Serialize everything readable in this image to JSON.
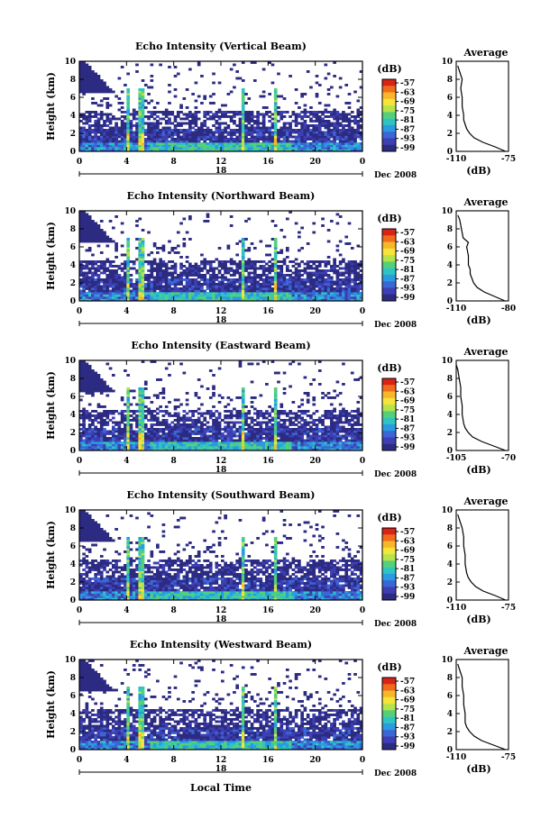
{
  "figure": {
    "xlabel": "Local Time"
  },
  "colorbar": {
    "title": "(dB)",
    "ticks": [
      "-57",
      "-63",
      "-69",
      "-75",
      "-81",
      "-87",
      "-93",
      "-99"
    ],
    "colors": [
      "#d62417",
      "#f26a1c",
      "#f7b72a",
      "#f5e43a",
      "#b6e34a",
      "#55d07a",
      "#2fc4c2",
      "#2a9be0",
      "#3b66d6",
      "#3d3fb3",
      "#2c2b82"
    ]
  },
  "chart_data": [
    {
      "type": "heatmap",
      "title": "Echo Intensity (Vertical Beam)",
      "ylabel": "Height (km)",
      "y_ticks": [
        "0",
        "2",
        "4",
        "6",
        "8",
        "10"
      ],
      "x_ticks": [
        "0",
        "4",
        "8",
        "12",
        "16",
        "20",
        "0"
      ],
      "xlim": [
        0,
        24
      ],
      "ylim": [
        0,
        10
      ],
      "date_tick": "18",
      "date_label": "Dec 2008",
      "profile": {
        "title": "Average",
        "xlabel": "(dB)",
        "x_ticks": [
          "-110",
          "-75"
        ],
        "xlim": [
          -110,
          -75
        ],
        "y_ticks": [
          "0",
          "2",
          "4",
          "6",
          "8",
          "10"
        ],
        "heights": [
          0,
          0.5,
          1,
          1.5,
          2,
          2.5,
          3,
          3.5,
          4,
          5,
          6,
          7,
          8,
          9,
          9.5
        ],
        "values": [
          -77,
          -84,
          -92,
          -98,
          -101,
          -103,
          -104,
          -105,
          -105,
          -106,
          -106,
          -107,
          -106,
          -108,
          -109
        ]
      }
    },
    {
      "type": "heatmap",
      "title": "Echo Intensity (Northward Beam)",
      "ylabel": "Height (km)",
      "y_ticks": [
        "0",
        "2",
        "4",
        "6",
        "8",
        "10"
      ],
      "x_ticks": [
        "0",
        "4",
        "8",
        "12",
        "16",
        "20",
        "0"
      ],
      "xlim": [
        0,
        24
      ],
      "ylim": [
        0,
        10
      ],
      "date_tick": "18",
      "date_label": "Dec 2008",
      "profile": {
        "title": "Average",
        "xlabel": "(dB)",
        "x_ticks": [
          "-110",
          "-80"
        ],
        "xlim": [
          -110,
          -80
        ],
        "y_ticks": [
          "0",
          "2",
          "4",
          "6",
          "8",
          "10"
        ],
        "heights": [
          0,
          0.5,
          1,
          1.5,
          2,
          2.5,
          3,
          3.5,
          4,
          5,
          6,
          6.5,
          7,
          8,
          9,
          9.5
        ],
        "values": [
          -82,
          -88,
          -94,
          -98,
          -100,
          -101,
          -102,
          -102,
          -103,
          -103,
          -104,
          -103,
          -106,
          -107,
          -108,
          -109
        ]
      }
    },
    {
      "type": "heatmap",
      "title": "Echo Intensity (Eastward Beam)",
      "ylabel": "Height (km)",
      "y_ticks": [
        "0",
        "2",
        "4",
        "6",
        "8",
        "10"
      ],
      "x_ticks": [
        "0",
        "4",
        "8",
        "12",
        "16",
        "20",
        "0"
      ],
      "xlim": [
        0,
        24
      ],
      "ylim": [
        0,
        10
      ],
      "date_tick": "18",
      "date_label": "Dec 2008",
      "profile": {
        "title": "Average",
        "xlabel": "(dB)",
        "x_ticks": [
          "-105",
          "-70"
        ],
        "xlim": [
          -105,
          -70
        ],
        "y_ticks": [
          "0",
          "2",
          "4",
          "6",
          "8",
          "10"
        ],
        "heights": [
          0,
          0.5,
          1,
          1.5,
          2,
          2.5,
          3,
          4,
          5,
          6,
          7,
          8,
          9,
          9.5
        ],
        "values": [
          -72,
          -80,
          -88,
          -94,
          -97,
          -99,
          -100,
          -101,
          -101,
          -102,
          -102,
          -103,
          -104,
          -105
        ]
      }
    },
    {
      "type": "heatmap",
      "title": "Echo Intensity (Southward Beam)",
      "ylabel": "Height (km)",
      "y_ticks": [
        "0",
        "2",
        "4",
        "6",
        "8",
        "10"
      ],
      "x_ticks": [
        "0",
        "4",
        "8",
        "12",
        "16",
        "20",
        "0"
      ],
      "xlim": [
        0,
        24
      ],
      "ylim": [
        0,
        10
      ],
      "date_tick": "18",
      "date_label": "Dec 2008",
      "profile": {
        "title": "Average",
        "xlabel": "(dB)",
        "x_ticks": [
          "-110",
          "-75"
        ],
        "xlim": [
          -110,
          -75
        ],
        "y_ticks": [
          "0",
          "2",
          "4",
          "6",
          "8",
          "10"
        ],
        "heights": [
          0,
          0.5,
          1,
          1.5,
          2,
          2.5,
          3,
          4,
          5,
          6,
          7,
          8,
          9,
          9.5
        ],
        "values": [
          -77,
          -84,
          -92,
          -97,
          -100,
          -102,
          -103,
          -104,
          -104,
          -105,
          -105,
          -106,
          -108,
          -109
        ]
      }
    },
    {
      "type": "heatmap",
      "title": "Echo Intensity (Westward Beam)",
      "ylabel": "Height (km)",
      "y_ticks": [
        "0",
        "2",
        "4",
        "6",
        "8",
        "10"
      ],
      "x_ticks": [
        "0",
        "4",
        "8",
        "12",
        "16",
        "20",
        "0"
      ],
      "xlim": [
        0,
        24
      ],
      "ylim": [
        0,
        10
      ],
      "date_tick": "18",
      "date_label": "Dec 2008",
      "profile": {
        "title": "Average",
        "xlabel": "(dB)",
        "x_ticks": [
          "-110",
          "-75"
        ],
        "xlim": [
          -110,
          -75
        ],
        "y_ticks": [
          "0",
          "2",
          "4",
          "6",
          "8",
          "10"
        ],
        "heights": [
          0,
          0.5,
          1,
          1.5,
          2,
          2.5,
          3,
          4,
          5,
          6,
          7,
          8,
          9,
          9.5
        ],
        "values": [
          -77,
          -85,
          -93,
          -98,
          -101,
          -103,
          -104,
          -104,
          -105,
          -105,
          -106,
          -106,
          -108,
          -109
        ]
      }
    }
  ]
}
